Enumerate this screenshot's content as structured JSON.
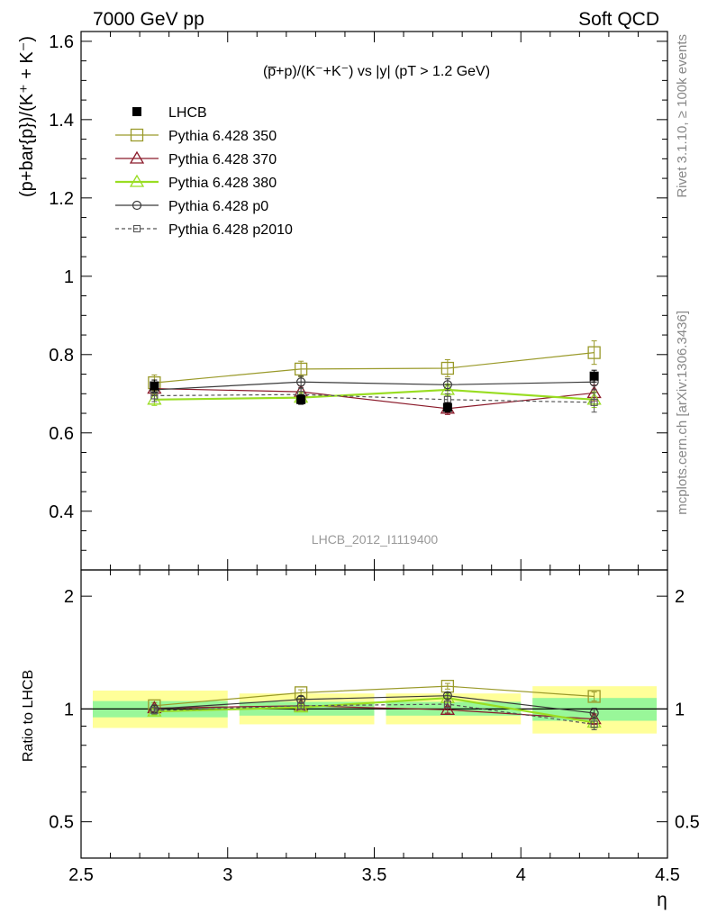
{
  "header": {
    "left": "7000 GeV pp",
    "right": "Soft QCD"
  },
  "side_text": {
    "rivet": "Rivet 3.1.10, ≥ 100k events",
    "mcplots": "mcplots.cern.ch [arXiv:1306.3436]"
  },
  "colors": {
    "data": "#000000",
    "p350": "#9a9a2a",
    "p370": "#8b1a2a",
    "p380": "#99dd22",
    "p0": "#3a3a3a",
    "p2010": "#555555",
    "band_inner": "#99f799",
    "band_outer": "#ffff99"
  },
  "chart_data": [
    {
      "type": "line",
      "title": "(p̅+p)/(K⁻+K⁻) vs |y| (pT > 1.2 GeV)",
      "ylabel": "(p+bar{p})/(K⁺ + K⁻)",
      "analysis_label": "LHCB_2012_I1119400",
      "xlim": [
        2.5,
        4.5
      ],
      "ylim": [
        0.25,
        1.625
      ],
      "yticks": [
        0.4,
        0.6,
        0.8,
        1.0,
        1.2,
        1.4,
        1.6
      ],
      "ytick_labels": [
        "0.4",
        "0.6",
        "0.8",
        "1",
        "1.2",
        "1.4",
        "1.6"
      ],
      "x": [
        2.75,
        3.25,
        3.75,
        4.25
      ],
      "legend_position": "top-left",
      "series": [
        {
          "name": "LHCB",
          "style": "data",
          "marker": "filled-square",
          "values": [
            0.72,
            0.685,
            0.665,
            0.745
          ],
          "errors": [
            0.015,
            0.012,
            0.012,
            0.015
          ]
        },
        {
          "name": "Pythia 6.428 350",
          "style": "p350",
          "marker": "open-square",
          "values": [
            0.728,
            0.763,
            0.765,
            0.805
          ],
          "errors": [
            0.02,
            0.02,
            0.022,
            0.03
          ]
        },
        {
          "name": "Pythia 6.428 370",
          "style": "p370",
          "marker": "open-triangle",
          "values": [
            0.713,
            0.705,
            0.662,
            0.702
          ],
          "errors": [
            0.015,
            0.015,
            0.015,
            0.02
          ]
        },
        {
          "name": "Pythia 6.428 380",
          "style": "p380",
          "marker": "open-triangle",
          "values": [
            0.685,
            0.69,
            0.71,
            0.685
          ],
          "errors": [
            0.015,
            0.015,
            0.015,
            0.02
          ]
        },
        {
          "name": "Pythia 6.428 p0",
          "style": "p0",
          "marker": "open-circle",
          "values": [
            0.71,
            0.73,
            0.723,
            0.73
          ],
          "errors": [
            0.015,
            0.015,
            0.015,
            0.02
          ]
        },
        {
          "name": "Pythia 6.428 p2010",
          "style": "p2010",
          "marker": "open-square-small",
          "dashed": true,
          "values": [
            0.695,
            0.698,
            0.685,
            0.678
          ],
          "errors": [
            0.015,
            0.015,
            0.015,
            0.025
          ]
        }
      ]
    },
    {
      "type": "line",
      "ylabel": "Ratio to LHCB",
      "xlabel": "η",
      "xlim": [
        2.5,
        4.5
      ],
      "ylim": [
        0.4,
        2.35
      ],
      "log_y": true,
      "yticks": [
        0.5,
        1,
        2
      ],
      "ytick_labels": [
        "0.5",
        "1",
        "2"
      ],
      "xticks": [
        2.5,
        3,
        3.5,
        4,
        4.5
      ],
      "xtick_labels": [
        "2.5",
        "3",
        "3.5",
        "4",
        "4.5"
      ],
      "x": [
        2.75,
        3.25,
        3.75,
        4.25
      ],
      "bands": [
        {
          "x_low": 2.5,
          "x_high": 3.0,
          "inner": [
            0.95,
            1.05
          ],
          "outer": [
            0.89,
            1.12
          ]
        },
        {
          "x_low": 3.0,
          "x_high": 3.5,
          "inner": [
            0.96,
            1.045
          ],
          "outer": [
            0.91,
            1.1
          ]
        },
        {
          "x_low": 3.5,
          "x_high": 4.0,
          "inner": [
            0.96,
            1.045
          ],
          "outer": [
            0.91,
            1.1
          ]
        },
        {
          "x_low": 4.0,
          "x_high": 4.5,
          "inner": [
            0.93,
            1.07
          ],
          "outer": [
            0.86,
            1.15
          ]
        }
      ],
      "series": [
        {
          "name": "Pythia 6.428 350",
          "style": "p350",
          "marker": "open-square",
          "values": [
            1.02,
            1.105,
            1.15,
            1.08
          ],
          "errors": [
            0.02,
            0.02,
            0.02,
            0.03
          ]
        },
        {
          "name": "Pythia 6.428 370",
          "style": "p370",
          "marker": "open-triangle",
          "values": [
            1.005,
            1.02,
            0.995,
            0.94
          ],
          "errors": [
            0.02,
            0.02,
            0.02,
            0.03
          ]
        },
        {
          "name": "Pythia 6.428 380",
          "style": "p380",
          "marker": "open-triangle",
          "values": [
            0.985,
            1.01,
            1.07,
            0.92
          ],
          "errors": [
            0.02,
            0.02,
            0.02,
            0.03
          ]
        },
        {
          "name": "Pythia 6.428 p0",
          "style": "p0",
          "marker": "open-circle",
          "values": [
            1.0,
            1.06,
            1.085,
            0.975
          ],
          "errors": [
            0.02,
            0.02,
            0.02,
            0.03
          ]
        },
        {
          "name": "Pythia 6.428 p2010",
          "style": "p2010",
          "marker": "open-square-small",
          "dashed": true,
          "values": [
            0.99,
            1.02,
            1.03,
            0.91
          ],
          "errors": [
            0.02,
            0.02,
            0.02,
            0.03
          ]
        }
      ]
    }
  ]
}
